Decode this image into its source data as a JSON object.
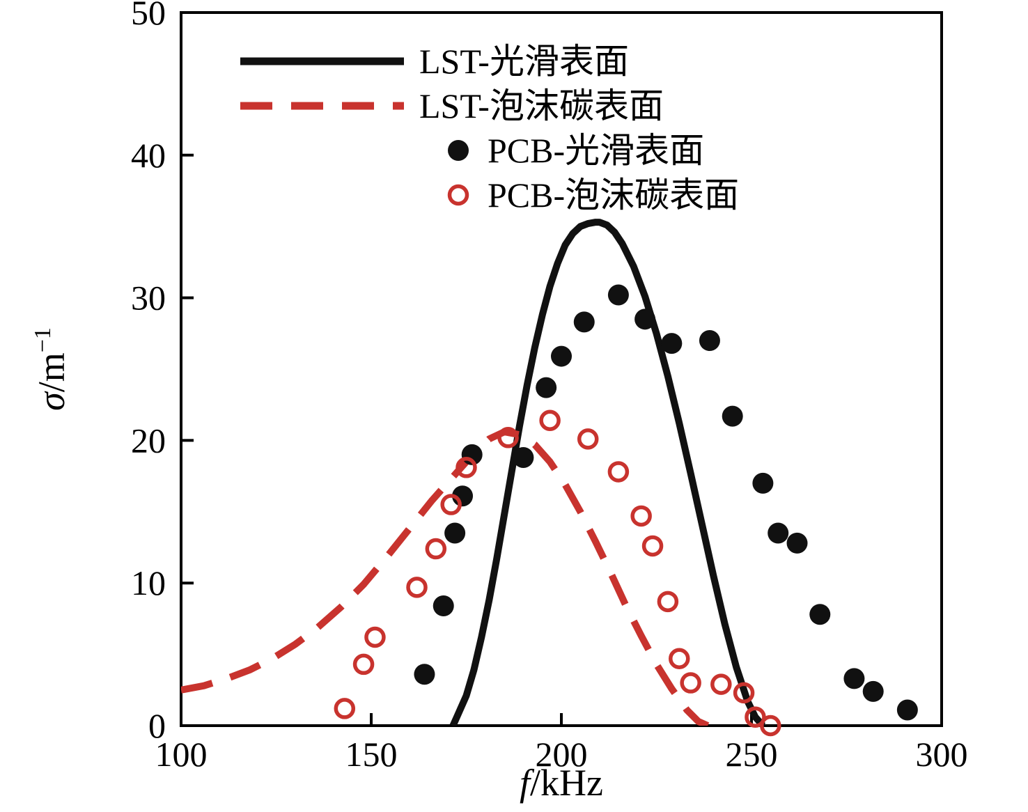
{
  "figure": {
    "background": "#ffffff",
    "frame_color": "#000000",
    "accent_red": "#c8332e",
    "accent_black": "#111111"
  },
  "chart_data": {
    "type": "line+scatter",
    "title": "",
    "xlabel": {
      "var": "f",
      "rest": "/kHz"
    },
    "ylabel": {
      "var": "σ",
      "rest": "/m",
      "sup": "−1"
    },
    "xlim": [
      100,
      300
    ],
    "ylim": [
      0,
      50
    ],
    "xticks": [
      100,
      150,
      200,
      250,
      300
    ],
    "yticks": [
      0,
      10,
      20,
      30,
      40,
      50
    ],
    "grid": false,
    "legend_position": "upper-left-inside",
    "series": [
      {
        "name": "LST-光滑表面",
        "type": "line",
        "style": "solid",
        "color": "#111111",
        "x": [
          171.5,
          173,
          175,
          177,
          179,
          181,
          183,
          185,
          187,
          189,
          191,
          193,
          195,
          197,
          199,
          201,
          203,
          205,
          207,
          209,
          210,
          212,
          214,
          216,
          219,
          222,
          225,
          228,
          231,
          234,
          237,
          240,
          243,
          246,
          249,
          251,
          253
        ],
        "y": [
          0,
          0.9,
          2.1,
          3.9,
          6.2,
          8.8,
          11.7,
          14.8,
          17.9,
          21.0,
          23.9,
          26.5,
          28.8,
          30.8,
          32.4,
          33.7,
          34.5,
          35.0,
          35.2,
          35.3,
          35.3,
          35.1,
          34.6,
          33.8,
          32.2,
          30.1,
          27.5,
          24.5,
          21.2,
          17.7,
          14.1,
          10.5,
          7.1,
          4.1,
          1.7,
          0.6,
          0
        ]
      },
      {
        "name": "LST-泡沫碳表面",
        "type": "line",
        "style": "dashed",
        "color": "#c8332e",
        "x": [
          100,
          106,
          112,
          118,
          124,
          130,
          136,
          142,
          148,
          154,
          160,
          166,
          172,
          177,
          181,
          185,
          189,
          193,
          197,
          201,
          205,
          209,
          213,
          217,
          221,
          225,
          229,
          233,
          236,
          238.5
        ],
        "y": [
          2.5,
          2.8,
          3.3,
          3.9,
          4.7,
          5.7,
          6.9,
          8.3,
          9.9,
          11.8,
          13.8,
          15.8,
          17.6,
          19.1,
          20.1,
          20.6,
          20.4,
          19.7,
          18.5,
          16.9,
          15.0,
          12.9,
          10.7,
          8.4,
          6.3,
          4.3,
          2.6,
          1.1,
          0.3,
          0
        ]
      },
      {
        "name": "PCB-光滑表面",
        "type": "scatter",
        "marker": "filled-circle",
        "color": "#111111",
        "x": [
          164,
          169,
          172,
          174,
          176.5,
          190,
          196,
          200,
          206,
          215,
          222,
          229,
          239,
          245,
          253,
          257,
          262,
          268,
          277,
          282,
          291
        ],
        "y": [
          3.6,
          8.4,
          13.5,
          16.1,
          19.0,
          18.8,
          23.7,
          25.9,
          28.3,
          30.2,
          28.5,
          26.8,
          27.0,
          21.7,
          17.0,
          13.5,
          12.8,
          7.8,
          3.3,
          2.4,
          1.1
        ]
      },
      {
        "name": "PCB-泡沫碳表面",
        "type": "scatter",
        "marker": "open-circle",
        "color": "#c8332e",
        "x": [
          143,
          148,
          151,
          162,
          167,
          171,
          175,
          186,
          197,
          207,
          215,
          221,
          224,
          228,
          231,
          234,
          242,
          248,
          251,
          255
        ],
        "y": [
          1.2,
          4.3,
          6.2,
          9.7,
          12.4,
          15.5,
          18.1,
          20.2,
          21.4,
          20.1,
          17.8,
          14.7,
          12.6,
          8.7,
          4.7,
          3.0,
          2.9,
          2.3,
          0.6,
          0.0
        ]
      }
    ]
  }
}
